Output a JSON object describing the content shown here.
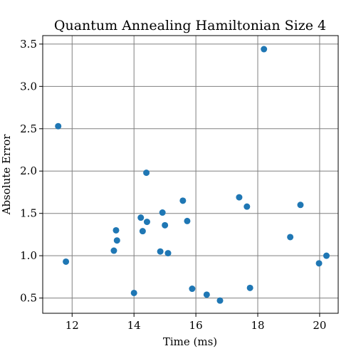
{
  "chart_data": {
    "type": "scatter",
    "title": "Quantum Annealing Hamiltonian Size 4",
    "xlabel": "Time (ms)",
    "ylabel": "Absolute Error",
    "xlim": [
      11.05,
      20.6
    ],
    "ylim": [
      0.32,
      3.6
    ],
    "xticks": [
      12,
      14,
      16,
      18,
      20
    ],
    "yticks": [
      0.5,
      1.0,
      1.5,
      2.0,
      2.5,
      3.0,
      3.5
    ],
    "xtick_labels": [
      "12",
      "14",
      "16",
      "18",
      "20"
    ],
    "ytick_labels": [
      "0.5",
      "1.0",
      "1.5",
      "2.0",
      "2.5",
      "3.0",
      "3.5"
    ],
    "grid": true,
    "marker_color": "#1f77b4",
    "points": [
      {
        "x": 11.55,
        "y": 2.53
      },
      {
        "x": 11.8,
        "y": 0.93
      },
      {
        "x": 13.35,
        "y": 1.06
      },
      {
        "x": 13.42,
        "y": 1.3
      },
      {
        "x": 13.45,
        "y": 1.18
      },
      {
        "x": 14.0,
        "y": 0.56
      },
      {
        "x": 14.22,
        "y": 1.45
      },
      {
        "x": 14.28,
        "y": 1.29
      },
      {
        "x": 14.4,
        "y": 1.98
      },
      {
        "x": 14.42,
        "y": 1.4
      },
      {
        "x": 14.85,
        "y": 1.05
      },
      {
        "x": 14.92,
        "y": 1.51
      },
      {
        "x": 15.0,
        "y": 1.36
      },
      {
        "x": 15.1,
        "y": 1.03
      },
      {
        "x": 15.58,
        "y": 1.65
      },
      {
        "x": 15.72,
        "y": 1.41
      },
      {
        "x": 15.88,
        "y": 0.61
      },
      {
        "x": 16.35,
        "y": 0.54
      },
      {
        "x": 16.78,
        "y": 0.47
      },
      {
        "x": 17.4,
        "y": 1.69
      },
      {
        "x": 17.65,
        "y": 1.58
      },
      {
        "x": 17.75,
        "y": 0.62
      },
      {
        "x": 18.2,
        "y": 3.44
      },
      {
        "x": 19.05,
        "y": 1.22
      },
      {
        "x": 19.38,
        "y": 1.6
      },
      {
        "x": 19.98,
        "y": 0.91
      },
      {
        "x": 20.22,
        "y": 1.0
      }
    ]
  }
}
